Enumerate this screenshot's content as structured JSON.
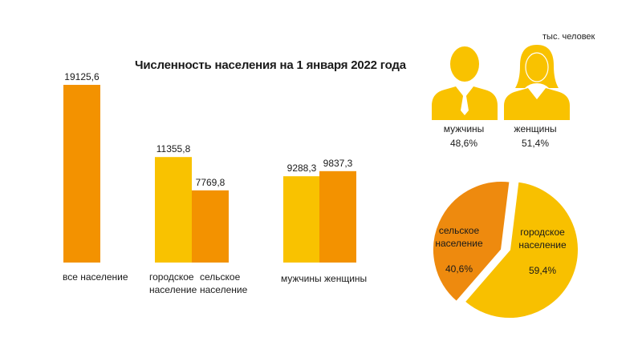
{
  "colors": {
    "orange": "#F39200",
    "yellow": "#F9C200",
    "pie_orange": "#EE8A0E",
    "pie_yellow": "#F8C000"
  },
  "page": {
    "title": "Численность населения на 1 января 2022 года",
    "unit": "тыс. человек"
  },
  "chart_data": [
    {
      "type": "bar",
      "title": "Численность населения на 1 января 2022 года",
      "ylim": [
        0,
        19125.6
      ],
      "bars": [
        {
          "label": "19125,6",
          "value": 19125.6,
          "color": "orange",
          "category": "все население"
        },
        {
          "label": "11355,8",
          "value": 11355.8,
          "color": "yellow",
          "category": "городское население"
        },
        {
          "label": "7769,8",
          "value": 7769.8,
          "color": "orange",
          "category": "сельское население"
        },
        {
          "label": "9288,3",
          "value": 9288.3,
          "color": "yellow",
          "category": "мужчины"
        },
        {
          "label": "9837,3",
          "value": 9837.3,
          "color": "orange",
          "category": "женщины"
        }
      ],
      "category_labels": [
        {
          "lines": [
            "все население"
          ]
        },
        {
          "lines": [
            "городское",
            "население"
          ]
        },
        {
          "lines": [
            "сельское",
            "население"
          ]
        },
        {
          "lines": [
            "мужчины"
          ]
        },
        {
          "lines": [
            "женщины"
          ]
        }
      ]
    },
    {
      "type": "pie",
      "slices": [
        {
          "lines": [
            "сельское",
            "население"
          ],
          "value_label": "40,6%",
          "value": 40.6,
          "color": "pie_orange"
        },
        {
          "lines": [
            "городское",
            "население"
          ],
          "value_label": "59,4%",
          "value": 59.4,
          "color": "pie_yellow"
        }
      ]
    }
  ],
  "gender": [
    {
      "label": "мужчины",
      "share": "48,6%",
      "icon": "male-user-icon"
    },
    {
      "label": "женщины",
      "share": "51,4%",
      "icon": "female-user-icon"
    }
  ]
}
